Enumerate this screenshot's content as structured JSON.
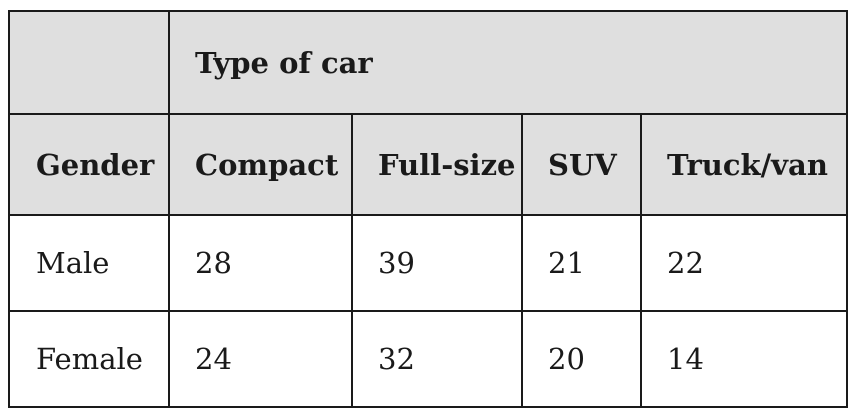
{
  "table": {
    "group_header": "Type of car",
    "row_header": "Gender",
    "columns": [
      "Compact",
      "Full-size",
      "SUV",
      "Truck/van"
    ],
    "rows": [
      {
        "label": "Male",
        "values": [
          "28",
          "39",
          "21",
          "22"
        ]
      },
      {
        "label": "Female",
        "values": [
          "24",
          "32",
          "20",
          "14"
        ]
      }
    ]
  },
  "colors": {
    "header_background": "#dfdfdf",
    "border": "#1a1a1a",
    "body_background": "#ffffff"
  }
}
